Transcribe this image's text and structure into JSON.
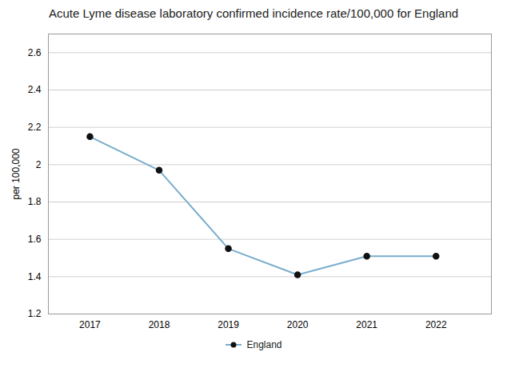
{
  "chart_data": {
    "type": "line",
    "title": "Acute Lyme disease laboratory confirmed incidence rate/100,000 for England",
    "ylabel": "per 100,000",
    "x": [
      2017,
      2018,
      2019,
      2020,
      2021,
      2022
    ],
    "xlim": [
      2016.4,
      2022.8
    ],
    "xticks": [
      2017,
      2018,
      2019,
      2020,
      2021,
      2022
    ],
    "ylim": [
      1.2,
      2.7
    ],
    "yticks": [
      1.2,
      1.4,
      1.6,
      1.8,
      2,
      2.2,
      2.4,
      2.6
    ],
    "grid": true,
    "legend": "bottom",
    "series": [
      {
        "name": "England",
        "color": "#7aadcc",
        "marker": "circle",
        "values": [
          2.15,
          1.97,
          1.55,
          1.41,
          1.51,
          1.51
        ]
      }
    ]
  }
}
